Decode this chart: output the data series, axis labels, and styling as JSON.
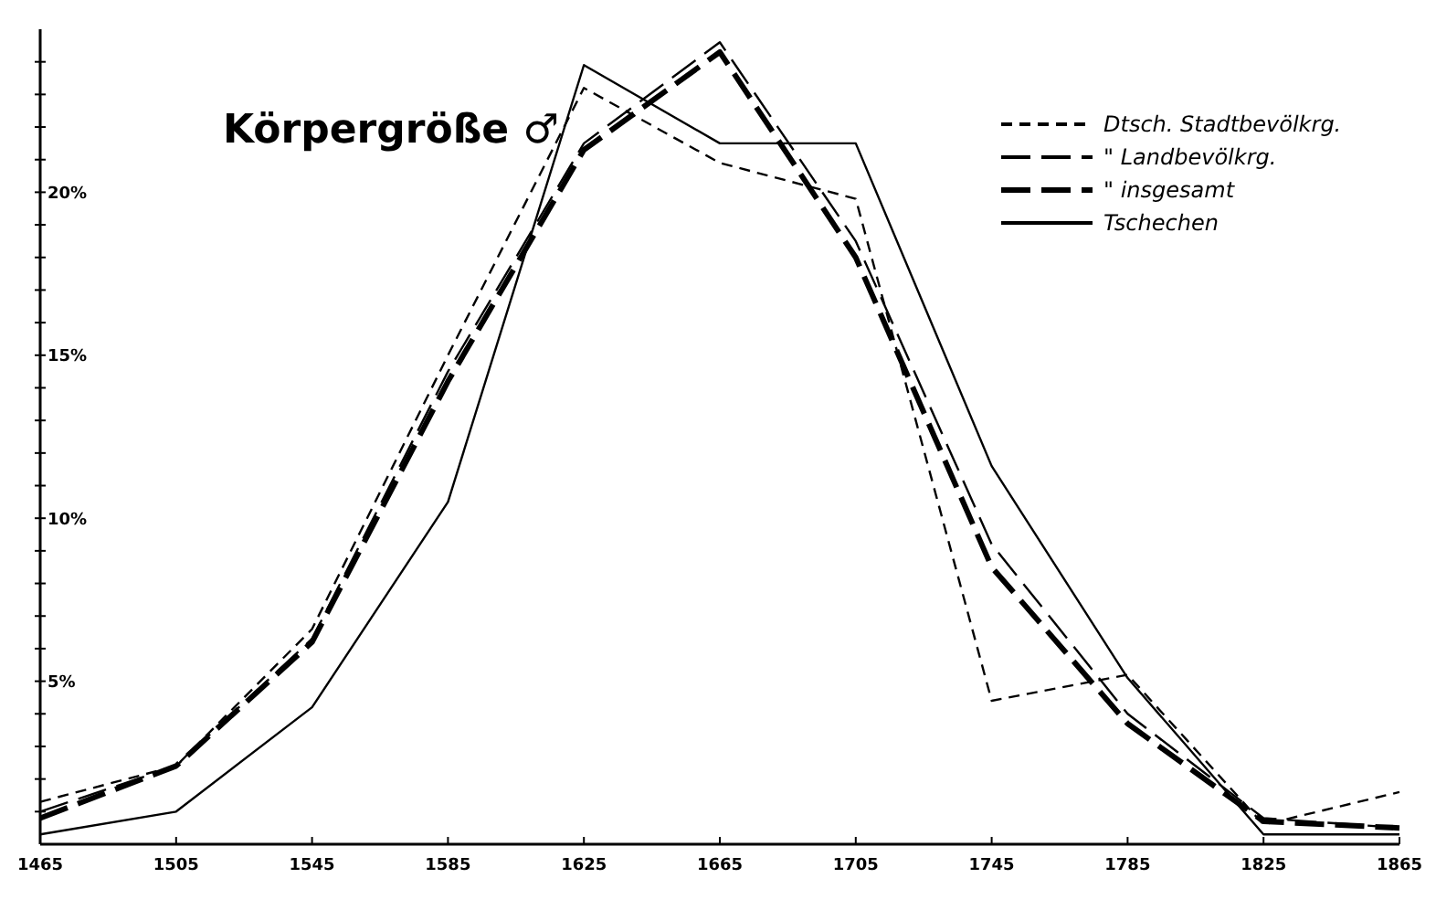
{
  "chart_data": {
    "type": "line",
    "title": "Körpergröße ♂",
    "x": [
      1465,
      1505,
      1545,
      1585,
      1625,
      1665,
      1705,
      1745,
      1785,
      1825,
      1865
    ],
    "xlim": [
      1465,
      1865
    ],
    "xticks": [
      1465,
      1505,
      1545,
      1585,
      1625,
      1665,
      1705,
      1745,
      1785,
      1825,
      1865
    ],
    "ylim": [
      0,
      25
    ],
    "yticks": [
      {
        "value": 1,
        "label": null
      },
      {
        "value": 2,
        "label": null
      },
      {
        "value": 3,
        "label": null
      },
      {
        "value": 4,
        "label": null
      },
      {
        "value": 5,
        "label": "5%"
      },
      {
        "value": 6,
        "label": null
      },
      {
        "value": 7,
        "label": null
      },
      {
        "value": 8,
        "label": null
      },
      {
        "value": 9,
        "label": null
      },
      {
        "value": 10,
        "label": "10%"
      },
      {
        "value": 11,
        "label": null
      },
      {
        "value": 12,
        "label": null
      },
      {
        "value": 13,
        "label": null
      },
      {
        "value": 14,
        "label": null
      },
      {
        "value": 15,
        "label": "15%"
      },
      {
        "value": 16,
        "label": null
      },
      {
        "value": 17,
        "label": null
      },
      {
        "value": 18,
        "label": null
      },
      {
        "value": 19,
        "label": null
      },
      {
        "value": 20,
        "label": "20%"
      },
      {
        "value": 21,
        "label": null
      },
      {
        "value": 22,
        "label": null
      },
      {
        "value": 23,
        "label": null
      },
      {
        "value": 24,
        "label": null
      }
    ],
    "grid": false,
    "legend": "top right",
    "marker": "none",
    "series": [
      {
        "name": "Dtsch. Stadtbevölkrg.",
        "color": "#000000",
        "line_style": "dashed",
        "values": [
          1.3,
          2.4,
          6.6,
          15,
          23.2,
          20.9,
          19.8,
          4.4,
          5.2,
          0.6,
          1.6
        ]
      },
      {
        "name": "\" Landbevölkrg.",
        "color": "#000000",
        "line_style": "dashed",
        "values": [
          1.0,
          2.4,
          6.3,
          14.5,
          21.5,
          24.6,
          18.5,
          9.2,
          4.0,
          0.8,
          0.5
        ]
      },
      {
        "name": "\" insgesamt",
        "color": "#000000",
        "line_style": "dashed",
        "values": [
          0.8,
          2.4,
          6.2,
          14.2,
          21.3,
          24.3,
          18.0,
          8.5,
          3.7,
          0.7,
          0.5
        ]
      },
      {
        "name": "Tschechen",
        "color": "#000000",
        "line_style": "solid",
        "values": [
          0.3,
          1.0,
          4.2,
          10.5,
          23.9,
          21.5,
          21.5,
          11.6,
          5.1,
          0.3,
          0.3
        ]
      }
    ]
  }
}
